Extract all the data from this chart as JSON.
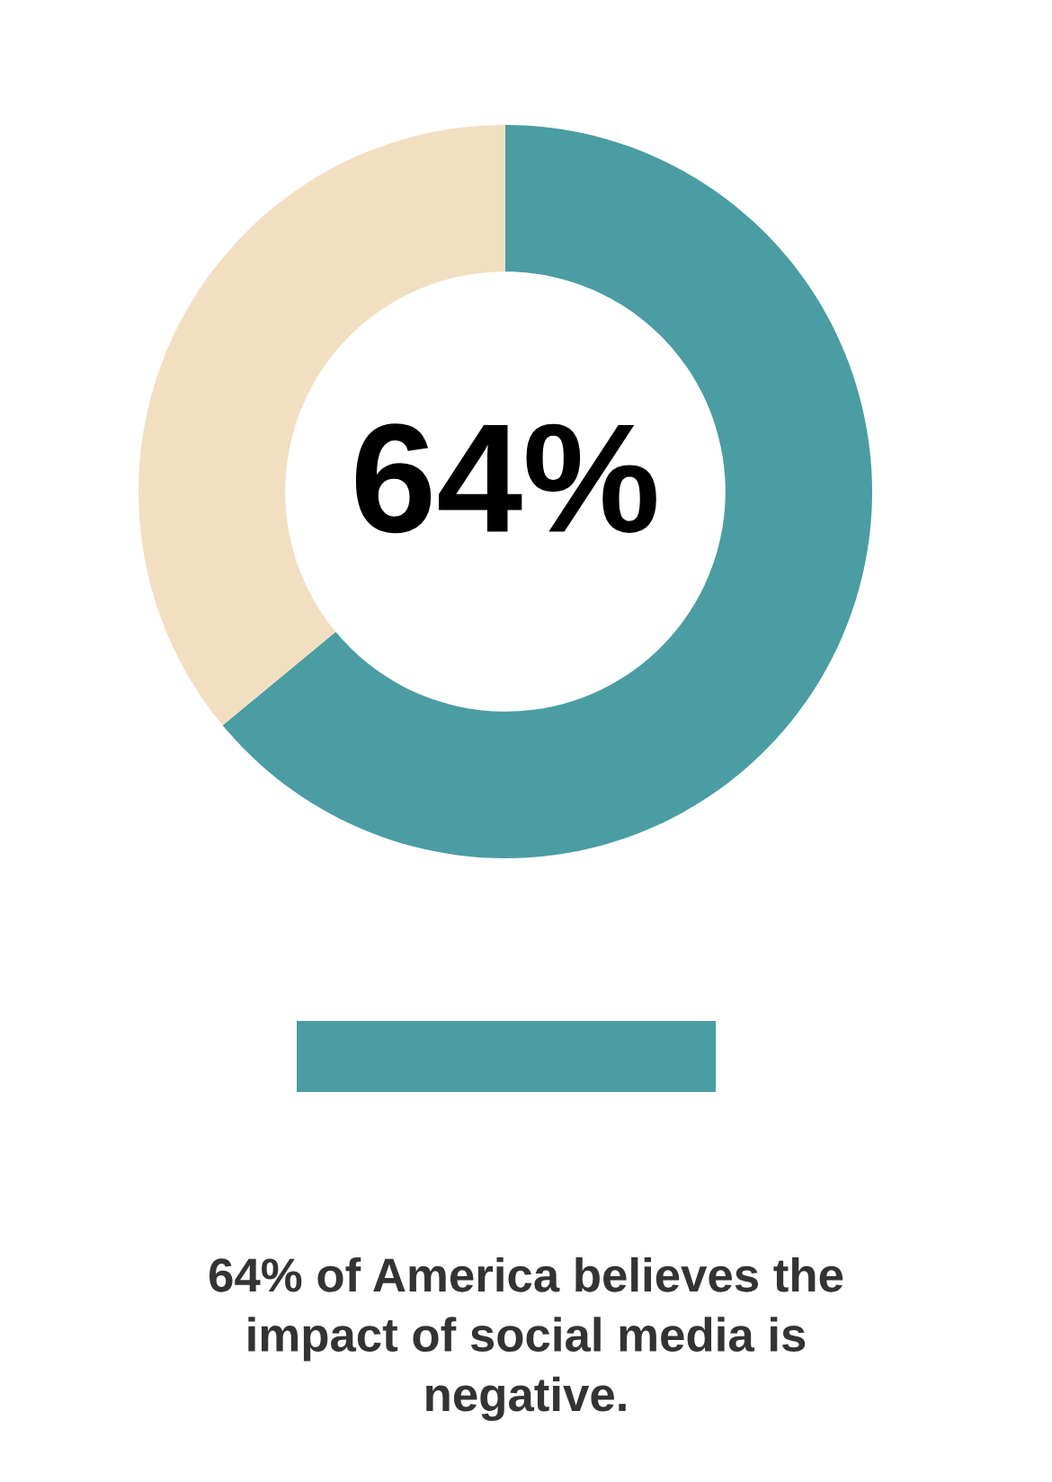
{
  "chart_data": {
    "type": "donut",
    "categories": [
      null,
      null
    ],
    "values": [
      64,
      36
    ],
    "colors": [
      "#4a9da3",
      "#f2dfc2"
    ],
    "value_labels": [
      "64%",
      null
    ],
    "annotations": [
      "64% of America believes the\nimpact of social media is\nnegative."
    ]
  }
}
